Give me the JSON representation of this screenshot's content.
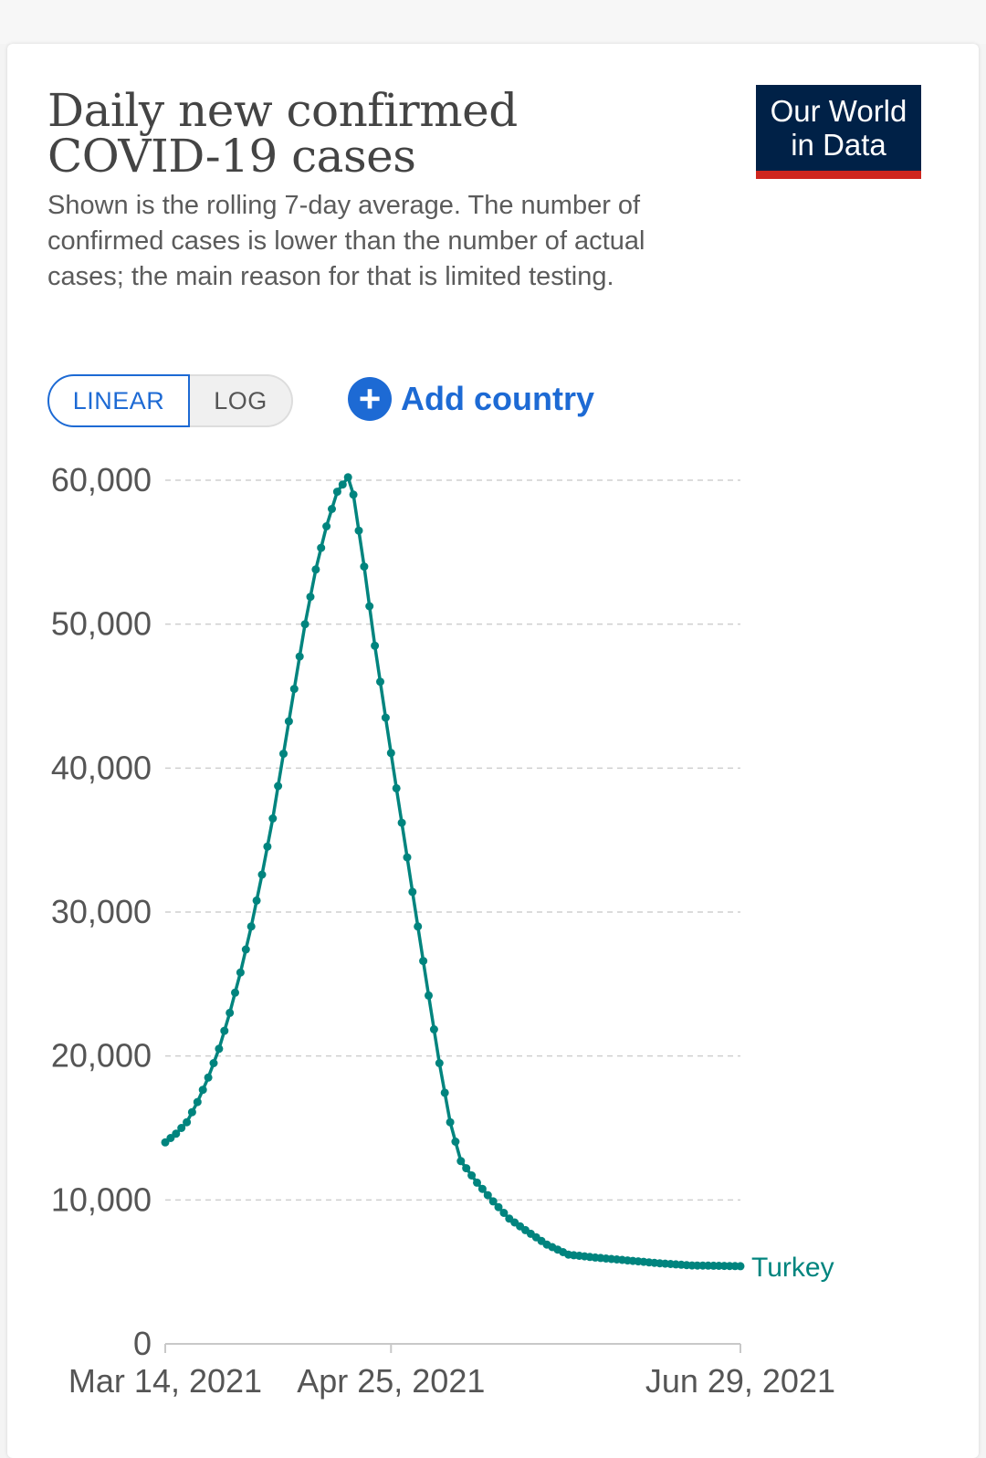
{
  "header": {
    "title": "Daily new confirmed COVID-19 cases",
    "subtitle": "Shown is the rolling 7-day average. The number of confirmed cases is lower than the number of actual cases; the main reason for that is limited testing."
  },
  "logo": {
    "line1": "Our World",
    "line2": "in Data"
  },
  "controls": {
    "linear_label": "LINEAR",
    "log_label": "LOG",
    "add_country_label": "Add country"
  },
  "colors": {
    "series": "#00847e",
    "accent": "#1d6ad4",
    "logo_bg": "#002147",
    "logo_stripe": "#ce261e"
  },
  "chart_data": {
    "type": "line",
    "scale": "linear",
    "grid": true,
    "xlabel": "",
    "ylabel": "",
    "ylim": [
      0,
      60000
    ],
    "yticks": [
      0,
      10000,
      20000,
      30000,
      40000,
      50000,
      60000
    ],
    "ytick_labels": [
      "0",
      "10,000",
      "20,000",
      "30,000",
      "40,000",
      "50,000",
      "60,000"
    ],
    "x_range": [
      "Mar 14, 2021",
      "Jun 29, 2021"
    ],
    "x_tick_labels": [
      {
        "date": "Mar 14, 2021",
        "label": "Mar 14, 2021"
      },
      {
        "date": "Apr 25, 2021",
        "label": "Apr 25, 2021"
      },
      {
        "date": "Jun 29, 2021",
        "label": "Jun 29, 2021"
      }
    ],
    "series": [
      {
        "name": "Turkey",
        "color": "#00847e",
        "points": [
          {
            "date": "Mar 14, 2021",
            "value": 14000
          },
          {
            "date": "Mar 16, 2021",
            "value": 14600
          },
          {
            "date": "Mar 18, 2021",
            "value": 15400
          },
          {
            "date": "Mar 20, 2021",
            "value": 16800
          },
          {
            "date": "Mar 22, 2021",
            "value": 18500
          },
          {
            "date": "Mar 24, 2021",
            "value": 20500
          },
          {
            "date": "Mar 26, 2021",
            "value": 23000
          },
          {
            "date": "Mar 28, 2021",
            "value": 25800
          },
          {
            "date": "Mar 30, 2021",
            "value": 29000
          },
          {
            "date": "Apr 1, 2021",
            "value": 32600
          },
          {
            "date": "Apr 3, 2021",
            "value": 36500
          },
          {
            "date": "Apr 5, 2021",
            "value": 41000
          },
          {
            "date": "Apr 7, 2021",
            "value": 45500
          },
          {
            "date": "Apr 9, 2021",
            "value": 50000
          },
          {
            "date": "Apr 11, 2021",
            "value": 53800
          },
          {
            "date": "Apr 13, 2021",
            "value": 56800
          },
          {
            "date": "Apr 15, 2021",
            "value": 59200
          },
          {
            "date": "Apr 17, 2021",
            "value": 60200
          },
          {
            "date": "Apr 18, 2021",
            "value": 59000
          },
          {
            "date": "Apr 20, 2021",
            "value": 54000
          },
          {
            "date": "Apr 22, 2021",
            "value": 48500
          },
          {
            "date": "Apr 24, 2021",
            "value": 43500
          },
          {
            "date": "Apr 26, 2021",
            "value": 38600
          },
          {
            "date": "Apr 28, 2021",
            "value": 33800
          },
          {
            "date": "Apr 30, 2021",
            "value": 29000
          },
          {
            "date": "May 2, 2021",
            "value": 24200
          },
          {
            "date": "May 4, 2021",
            "value": 19500
          },
          {
            "date": "May 6, 2021",
            "value": 15400
          },
          {
            "date": "May 8, 2021",
            "value": 12700
          },
          {
            "date": "May 11, 2021",
            "value": 11200
          },
          {
            "date": "May 14, 2021",
            "value": 9900
          },
          {
            "date": "May 17, 2021",
            "value": 8700
          },
          {
            "date": "May 20, 2021",
            "value": 7900
          },
          {
            "date": "May 24, 2021",
            "value": 6900
          },
          {
            "date": "May 28, 2021",
            "value": 6200
          },
          {
            "date": "Jun 2, 2021",
            "value": 6000
          },
          {
            "date": "Jun 8, 2021",
            "value": 5800
          },
          {
            "date": "Jun 14, 2021",
            "value": 5600
          },
          {
            "date": "Jun 20, 2021",
            "value": 5450
          },
          {
            "date": "Jun 29, 2021",
            "value": 5400
          }
        ]
      }
    ]
  }
}
